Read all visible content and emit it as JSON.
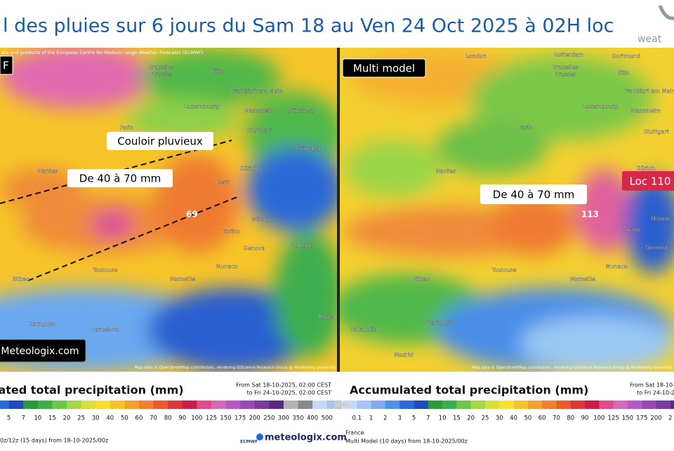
{
  "header": {
    "title": "l des pluies sur 6 jours du Sam 18 au Ven 24 Oct 2025 à 02H loc",
    "logo": "weat"
  },
  "left_map": {
    "tag": "F",
    "attribution": "ata and products of the European Centre for Medium-range Weather Forecasts (ECMWF)",
    "annotations": [
      "Couloir pluvieux",
      "De 40 à 70 mm"
    ],
    "max_label": "69",
    "badge": "Meteologix.com",
    "credit": "Map data © OpenStreetMap contributors, rendering GIScience Research Group @ Heidelberg University",
    "cities": [
      "Bruxelles",
      "Brussel",
      "Köln",
      "Frankfurt am Main",
      "Luxembourg",
      "Mannheim",
      "Nürnberg",
      "Paris",
      "Stuttgart",
      "München",
      "Nantes",
      "Zürich",
      "Bern",
      "Milano",
      "Torino",
      "Genova",
      "Bologna",
      "Monaco",
      "Toulouse",
      "Marseille",
      "Bilbao",
      "Zaragoza",
      "Barcelona",
      "Roma"
    ]
  },
  "right_map": {
    "tag": "Multi model",
    "annotation": "De 40 à 70 mm",
    "max_label": "113",
    "loc_badge": "Loc 110",
    "credit": "Map data © OpenStreetMap contributors, rendering GIScience Research Group @ Heidelberg University",
    "cities": [
      "London",
      "Rotterdam",
      "Dortmund",
      "Bruxelles",
      "Brussel",
      "Köln",
      "Frankfurt am Main",
      "Luxembourg",
      "Mannheim",
      "Paris",
      "Stuttgart",
      "Nantes",
      "Zürich",
      "Torino",
      "Milano",
      "Genova",
      "Monaco",
      "Toulouse",
      "Marseille",
      "Bilbao",
      "Zaragoza",
      "Valladolid",
      "Madrid"
    ]
  },
  "left_legend": {
    "title": "lated total precipitation (mm)",
    "from": "From Sat 18-10-2025, 02:00 CEST",
    "to": "to Fri 24-10-2025, 02:00 CEST",
    "scale": [
      "5",
      "7",
      "10",
      "15",
      "20",
      "25",
      "30",
      "40",
      "50",
      "60",
      "70",
      "80",
      "90",
      "100",
      "125",
      "150",
      "175",
      "200",
      "250",
      "300",
      "350",
      "400",
      "500"
    ],
    "footer": "0z/12z (15 days) from 18-10-2025/00z",
    "ecmwf": "ECMWF",
    "brand": "meteologix.com"
  },
  "right_legend": {
    "title": "Accumulated total precipitation (mm)",
    "from": "From Sat 18-10-",
    "to": "to Fri 24-10-2",
    "scale": [
      "0.1",
      "1",
      "2",
      "3",
      "5",
      "7",
      "10",
      "15",
      "20",
      "25",
      "30",
      "40",
      "50",
      "60",
      "70",
      "80",
      "90",
      "100",
      "125",
      "150",
      "175",
      "200",
      "2"
    ],
    "region": "France",
    "footer": "Multi Model (10 days) from 18-10-2025/00z"
  }
}
